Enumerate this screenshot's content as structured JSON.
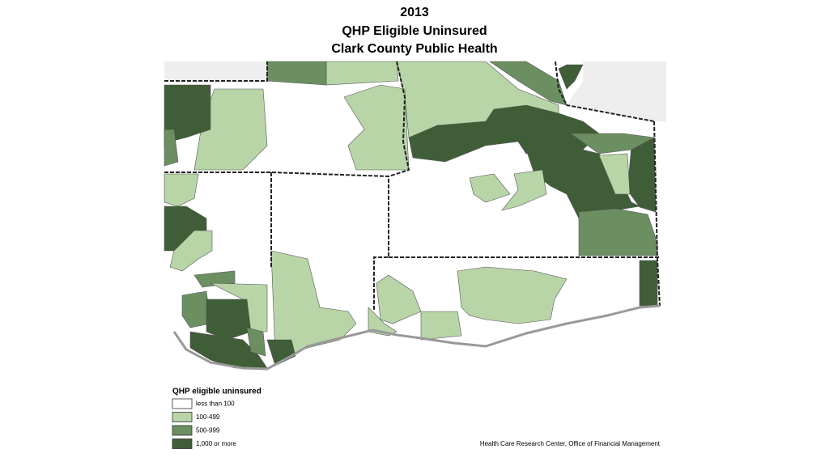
{
  "header": {
    "title_lines": [
      "2013",
      "QHP Eligible Uninsured",
      "Clark County Public Health"
    ]
  },
  "legend": {
    "title": "QHP eligible uninsured",
    "items": [
      {
        "label": "less than 100",
        "color": "#ffffff"
      },
      {
        "label": "100-499",
        "color": "#b8d5a7"
      },
      {
        "label": "500-999",
        "color": "#6b8f61"
      },
      {
        "label": "1,000 or more",
        "color": "#3f5e38"
      }
    ]
  },
  "source": "Health Care Research Center, Office of Financial Management"
}
